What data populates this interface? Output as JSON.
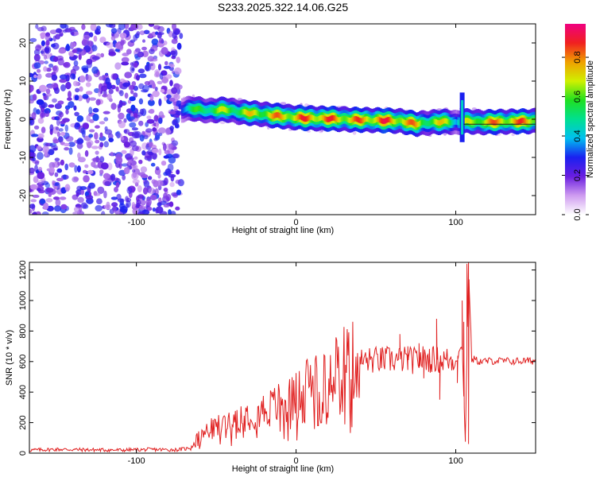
{
  "title": "S233.2025.322.14.06.G25",
  "chart_data": [
    {
      "type": "heatmap",
      "xlabel": "Height of straight line (km)",
      "ylabel": "Frequency (Hz)",
      "xlim": [
        -167,
        150
      ],
      "ylim": [
        -25,
        25
      ],
      "xticks": [
        -100,
        0,
        100
      ],
      "yticks": [
        -20,
        -10,
        0,
        10,
        20
      ],
      "colorbar": {
        "label": "Normalized spectral amplitude",
        "range": [
          0,
          0.97
        ],
        "ticks": [
          0.0,
          0.2,
          0.4,
          0.6,
          0.8
        ],
        "colors": [
          "#ffffff",
          "#cf9cf0",
          "#6a1ee0",
          "#1a20f0",
          "#00c0f0",
          "#00e090",
          "#20e020",
          "#d0f000",
          "#f0a000",
          "#f02020",
          "#f00080"
        ]
      },
      "noise_region_x": [
        -167,
        -72
      ],
      "ridge": {
        "description_values": "peak frequency (Hz) along height; amplitude 0-1",
        "x": [
          -72,
          -65,
          -55,
          -45,
          -35,
          -25,
          -15,
          -5,
          5,
          15,
          25,
          35,
          45,
          55,
          65,
          75,
          85,
          95,
          100,
          105,
          115,
          125,
          135,
          150
        ],
        "freq": [
          2.5,
          2.8,
          2.2,
          2.6,
          1.8,
          1.5,
          1.0,
          0.6,
          0.3,
          0.2,
          0.1,
          -0.1,
          -0.2,
          -0.3,
          -0.5,
          -1.2,
          -0.8,
          -0.6,
          -1.0,
          -0.5,
          -0.8,
          -0.7,
          -0.6,
          -0.5
        ],
        "amp": [
          0.45,
          0.6,
          0.7,
          0.72,
          0.75,
          0.8,
          0.85,
          0.9,
          0.92,
          0.95,
          0.9,
          0.88,
          0.92,
          0.95,
          0.9,
          0.85,
          0.7,
          0.85,
          0.5,
          0.7,
          0.85,
          0.88,
          0.9,
          0.9
        ]
      },
      "spike_x": 104,
      "spike_freq_range": [
        -6,
        7
      ]
    },
    {
      "type": "line",
      "xlabel": "Height of straight line (km)",
      "ylabel": "SNR (10 * v/v)",
      "xlim": [
        -167,
        150
      ],
      "ylim": [
        0,
        1250
      ],
      "xticks": [
        -100,
        0,
        100
      ],
      "yticks": [
        0,
        200,
        400,
        600,
        800,
        1000,
        1200
      ],
      "color": "#e02020",
      "x": [
        -167,
        -150,
        -130,
        -110,
        -90,
        -75,
        -68,
        -60,
        -55,
        -50,
        -45,
        -40,
        -35,
        -30,
        -25,
        -20,
        -15,
        -10,
        -5,
        0,
        5,
        10,
        15,
        20,
        25,
        30,
        40,
        50,
        60,
        65,
        70,
        75,
        80,
        85,
        90,
        95,
        100,
        104,
        106,
        108,
        110,
        115,
        125,
        135,
        150
      ],
      "y": [
        20,
        25,
        22,
        20,
        24,
        22,
        30,
        110,
        150,
        170,
        195,
        220,
        240,
        260,
        270,
        285,
        300,
        330,
        345,
        370,
        420,
        480,
        530,
        560,
        580,
        595,
        605,
        610,
        612,
        615,
        610,
        605,
        620,
        615,
        612,
        610,
        608,
        700,
        80,
        1230,
        620,
        600,
        605,
        602,
        605
      ],
      "spikes": [
        {
          "x": 88,
          "y": 880
        },
        {
          "x": 90,
          "y": 350
        },
        {
          "x": 101,
          "y": 460
        },
        {
          "x": 104,
          "y": 1000
        },
        {
          "x": 105,
          "y": 860
        },
        {
          "x": 106,
          "y": 120
        },
        {
          "x": 107,
          "y": 1240
        },
        {
          "x": 108,
          "y": 60
        },
        {
          "x": 65,
          "y": 780
        },
        {
          "x": 70,
          "y": 700
        },
        {
          "x": 77,
          "y": 720
        },
        {
          "x": 80,
          "y": 490
        }
      ]
    }
  ]
}
